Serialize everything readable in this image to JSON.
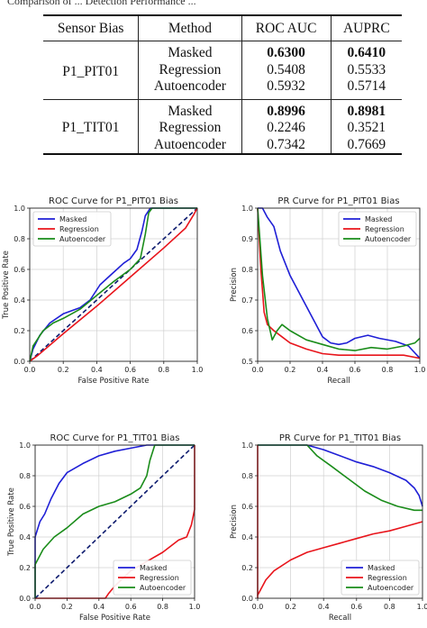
{
  "caption": "Comparison of ... Detection Performance ...",
  "table": {
    "headers": [
      "Sensor Bias",
      "Method",
      "ROC AUC",
      "AUPRC"
    ],
    "groups": [
      {
        "sensor": "P1_PIT01",
        "rows": [
          {
            "method": "Masked",
            "roc": "0.6300",
            "auprc": "0.6410",
            "bold": true
          },
          {
            "method": "Regression",
            "roc": "0.5408",
            "auprc": "0.5533",
            "bold": false
          },
          {
            "method": "Autoencoder",
            "roc": "0.5932",
            "auprc": "0.5714",
            "bold": false
          }
        ]
      },
      {
        "sensor": "P1_TIT01",
        "rows": [
          {
            "method": "Masked",
            "roc": "0.8996",
            "auprc": "0.8981",
            "bold": true
          },
          {
            "method": "Regression",
            "roc": "0.2246",
            "auprc": "0.3521",
            "bold": false
          },
          {
            "method": "Autoencoder",
            "roc": "0.7342",
            "auprc": "0.7669",
            "bold": false
          }
        ]
      }
    ]
  },
  "chart_data": [
    {
      "type": "line",
      "title": "ROC Curve for P1_PIT01 Bias",
      "xlabel": "False Positive Rate",
      "ylabel": "True Positive Rate",
      "xlim": [
        0,
        1
      ],
      "ylim": [
        0,
        1
      ],
      "xticks": [
        0.0,
        0.2,
        0.4,
        0.6,
        0.8,
        1.0
      ],
      "yticks": [
        0.0,
        0.2,
        0.4,
        0.6,
        0.8,
        1.0
      ],
      "grid": true,
      "legend": "top-left",
      "diagonal": true,
      "series": [
        {
          "name": "Masked",
          "color": "#1f1fd6",
          "points": [
            [
              0,
              0
            ],
            [
              0.02,
              0.08
            ],
            [
              0.06,
              0.17
            ],
            [
              0.12,
              0.25
            ],
            [
              0.2,
              0.31
            ],
            [
              0.3,
              0.35
            ],
            [
              0.36,
              0.4
            ],
            [
              0.42,
              0.5
            ],
            [
              0.5,
              0.58
            ],
            [
              0.56,
              0.64
            ],
            [
              0.6,
              0.67
            ],
            [
              0.64,
              0.73
            ],
            [
              0.67,
              0.85
            ],
            [
              0.69,
              0.95
            ],
            [
              0.72,
              1.0
            ],
            [
              1.0,
              1.0
            ]
          ]
        },
        {
          "name": "Regression",
          "color": "#e8141b",
          "points": [
            [
              0,
              0
            ],
            [
              0.05,
              0.04
            ],
            [
              0.2,
              0.18
            ],
            [
              0.4,
              0.36
            ],
            [
              0.6,
              0.55
            ],
            [
              0.8,
              0.74
            ],
            [
              0.93,
              0.87
            ],
            [
              0.98,
              0.96
            ],
            [
              1.0,
              1.0
            ]
          ]
        },
        {
          "name": "Autoencoder",
          "color": "#1a8c1a",
          "points": [
            [
              0,
              0
            ],
            [
              0.02,
              0.1
            ],
            [
              0.08,
              0.2
            ],
            [
              0.14,
              0.25
            ],
            [
              0.2,
              0.28
            ],
            [
              0.3,
              0.34
            ],
            [
              0.4,
              0.43
            ],
            [
              0.5,
              0.52
            ],
            [
              0.6,
              0.6
            ],
            [
              0.66,
              0.67
            ],
            [
              0.69,
              0.83
            ],
            [
              0.71,
              0.97
            ],
            [
              0.73,
              1.0
            ],
            [
              1.0,
              1.0
            ]
          ]
        }
      ]
    },
    {
      "type": "line",
      "title": "PR Curve for P1_PIT01 Bias",
      "xlabel": "Recall",
      "ylabel": "Precision",
      "xlim": [
        0,
        1
      ],
      "ylim": [
        0.5,
        1.0
      ],
      "xticks": [
        0.0,
        0.2,
        0.4,
        0.6,
        0.8,
        1.0
      ],
      "yticks": [
        0.5,
        0.6,
        0.7,
        0.8,
        0.9,
        1.0
      ],
      "grid": true,
      "legend": "top-right",
      "series": [
        {
          "name": "Masked",
          "color": "#1f1fd6",
          "points": [
            [
              0,
              1.0
            ],
            [
              0.03,
              1.0
            ],
            [
              0.06,
              0.97
            ],
            [
              0.1,
              0.94
            ],
            [
              0.14,
              0.86
            ],
            [
              0.2,
              0.78
            ],
            [
              0.28,
              0.7
            ],
            [
              0.35,
              0.63
            ],
            [
              0.4,
              0.58
            ],
            [
              0.45,
              0.56
            ],
            [
              0.5,
              0.555
            ],
            [
              0.55,
              0.56
            ],
            [
              0.6,
              0.575
            ],
            [
              0.68,
              0.585
            ],
            [
              0.75,
              0.575
            ],
            [
              0.85,
              0.565
            ],
            [
              0.93,
              0.55
            ],
            [
              1.0,
              0.51
            ]
          ]
        },
        {
          "name": "Regression",
          "color": "#e8141b",
          "points": [
            [
              0,
              1.0
            ],
            [
              0.02,
              0.8
            ],
            [
              0.04,
              0.66
            ],
            [
              0.06,
              0.62
            ],
            [
              0.1,
              0.6
            ],
            [
              0.15,
              0.58
            ],
            [
              0.2,
              0.56
            ],
            [
              0.3,
              0.54
            ],
            [
              0.4,
              0.525
            ],
            [
              0.5,
              0.52
            ],
            [
              0.7,
              0.52
            ],
            [
              0.9,
              0.52
            ],
            [
              1.0,
              0.51
            ]
          ]
        },
        {
          "name": "Autoencoder",
          "color": "#1a8c1a",
          "points": [
            [
              0,
              1.0
            ],
            [
              0.03,
              0.78
            ],
            [
              0.06,
              0.64
            ],
            [
              0.09,
              0.57
            ],
            [
              0.12,
              0.6
            ],
            [
              0.15,
              0.62
            ],
            [
              0.2,
              0.6
            ],
            [
              0.3,
              0.57
            ],
            [
              0.4,
              0.555
            ],
            [
              0.5,
              0.54
            ],
            [
              0.6,
              0.535
            ],
            [
              0.7,
              0.545
            ],
            [
              0.8,
              0.54
            ],
            [
              0.9,
              0.55
            ],
            [
              0.97,
              0.56
            ],
            [
              1.0,
              0.575
            ]
          ]
        }
      ]
    },
    {
      "type": "line",
      "title": "ROC Curve for P1_TIT01 Bias",
      "xlabel": "False Positive Rate",
      "ylabel": "True Positive Rate",
      "xlim": [
        0,
        1
      ],
      "ylim": [
        0,
        1
      ],
      "xticks": [
        0.0,
        0.2,
        0.4,
        0.6,
        0.8,
        1.0
      ],
      "yticks": [
        0.0,
        0.2,
        0.4,
        0.6,
        0.8,
        1.0
      ],
      "grid": true,
      "legend": "bottom-right",
      "diagonal": true,
      "series": [
        {
          "name": "Masked",
          "color": "#1f1fd6",
          "points": [
            [
              0,
              0
            ],
            [
              0.0,
              0.4
            ],
            [
              0.03,
              0.5
            ],
            [
              0.06,
              0.55
            ],
            [
              0.1,
              0.65
            ],
            [
              0.15,
              0.75
            ],
            [
              0.2,
              0.82
            ],
            [
              0.3,
              0.88
            ],
            [
              0.4,
              0.93
            ],
            [
              0.5,
              0.96
            ],
            [
              0.6,
              0.98
            ],
            [
              0.7,
              1.0
            ],
            [
              1.0,
              1.0
            ]
          ]
        },
        {
          "name": "Regression",
          "color": "#e8141b",
          "points": [
            [
              0,
              0
            ],
            [
              0.44,
              0.0
            ],
            [
              0.46,
              0.03
            ],
            [
              0.5,
              0.08
            ],
            [
              0.6,
              0.18
            ],
            [
              0.7,
              0.24
            ],
            [
              0.8,
              0.3
            ],
            [
              0.9,
              0.38
            ],
            [
              0.95,
              0.4
            ],
            [
              0.98,
              0.48
            ],
            [
              1.0,
              0.58
            ],
            [
              1.0,
              1.0
            ]
          ]
        },
        {
          "name": "Autoencoder",
          "color": "#1a8c1a",
          "points": [
            [
              0,
              0
            ],
            [
              0,
              0.22
            ],
            [
              0.05,
              0.32
            ],
            [
              0.12,
              0.4
            ],
            [
              0.2,
              0.46
            ],
            [
              0.3,
              0.55
            ],
            [
              0.4,
              0.6
            ],
            [
              0.5,
              0.63
            ],
            [
              0.6,
              0.68
            ],
            [
              0.66,
              0.72
            ],
            [
              0.7,
              0.8
            ],
            [
              0.72,
              0.9
            ],
            [
              0.75,
              1.0
            ],
            [
              1.0,
              1.0
            ]
          ]
        }
      ]
    },
    {
      "type": "line",
      "title": "PR Curve for P1_TIT01 Bias",
      "xlabel": "Recall",
      "ylabel": "Precision",
      "xlim": [
        0,
        1
      ],
      "ylim": [
        0,
        1
      ],
      "xticks": [
        0.0,
        0.2,
        0.4,
        0.6,
        0.8,
        1.0
      ],
      "yticks": [
        0.0,
        0.2,
        0.4,
        0.6,
        0.8,
        1.0
      ],
      "grid": true,
      "legend": "bottom-right",
      "series": [
        {
          "name": "Masked",
          "color": "#1f1fd6",
          "points": [
            [
              0,
              1.0
            ],
            [
              0.3,
              1.0
            ],
            [
              0.4,
              0.97
            ],
            [
              0.5,
              0.93
            ],
            [
              0.6,
              0.89
            ],
            [
              0.7,
              0.86
            ],
            [
              0.8,
              0.82
            ],
            [
              0.9,
              0.77
            ],
            [
              0.95,
              0.72
            ],
            [
              0.98,
              0.67
            ],
            [
              1.0,
              0.6
            ]
          ]
        },
        {
          "name": "Regression",
          "color": "#e8141b",
          "points": [
            [
              0,
              0
            ],
            [
              0,
              1.0
            ],
            [
              0,
              0.02
            ],
            [
              0.05,
              0.12
            ],
            [
              0.1,
              0.18
            ],
            [
              0.2,
              0.25
            ],
            [
              0.3,
              0.3
            ],
            [
              0.4,
              0.33
            ],
            [
              0.5,
              0.36
            ],
            [
              0.6,
              0.39
            ],
            [
              0.7,
              0.42
            ],
            [
              0.8,
              0.44
            ],
            [
              0.9,
              0.47
            ],
            [
              1.0,
              0.5
            ]
          ]
        },
        {
          "name": "Autoencoder",
          "color": "#1a8c1a",
          "points": [
            [
              0,
              1.0
            ],
            [
              0.3,
              1.0
            ],
            [
              0.36,
              0.93
            ],
            [
              0.45,
              0.86
            ],
            [
              0.55,
              0.78
            ],
            [
              0.65,
              0.7
            ],
            [
              0.75,
              0.64
            ],
            [
              0.85,
              0.6
            ],
            [
              0.95,
              0.575
            ],
            [
              1.0,
              0.575
            ]
          ]
        }
      ]
    }
  ]
}
